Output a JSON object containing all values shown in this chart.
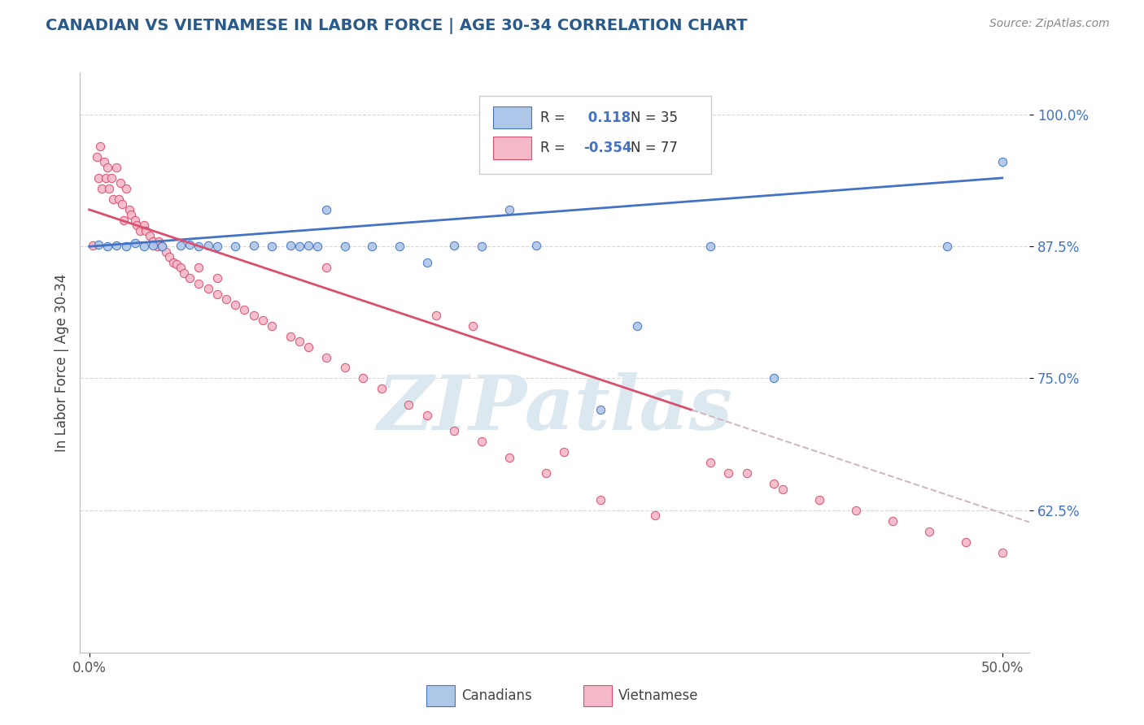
{
  "title": "CANADIAN VS VIETNAMESE IN LABOR FORCE | AGE 30-34 CORRELATION CHART",
  "source": "Source: ZipAtlas.com",
  "ylabel": "In Labor Force | Age 30-34",
  "xlim": [
    -0.005,
    0.515
  ],
  "ylim": [
    0.49,
    1.04
  ],
  "xticks": [
    0.0,
    0.5
  ],
  "xtick_labels": [
    "0.0%",
    "50.0%"
  ],
  "ytick_positions": [
    0.625,
    0.75,
    0.875,
    1.0
  ],
  "ytick_labels": [
    "62.5%",
    "75.0%",
    "87.5%",
    "100.0%"
  ],
  "legend_r_canadian": "0.118",
  "legend_n_canadian": "35",
  "legend_r_vietnamese": "-0.354",
  "legend_n_vietnamese": "77",
  "canadian_color": "#aec6e8",
  "canadian_edge_color": "#4472c4",
  "vietnamese_color": "#f4b8c8",
  "vietnamese_edge_color": "#d94f6e",
  "trend_canadian_color": "#4472c4",
  "trend_vietnamese_color": "#d94f6e",
  "dashed_color": "#d0b8c0",
  "watermark_color": "#dce8f0",
  "watermark_text": "ZIPatlas",
  "legend_label_canadian": "Canadians",
  "legend_label_vietnamese": "Vietnamese",
  "grid_color": "#d8d8d8",
  "title_color": "#2a5a8a",
  "source_color": "#888888",
  "ytick_color": "#4472c4",
  "xtick_color": "#555555",
  "canadian_x": [
    0.005,
    0.01,
    0.015,
    0.02,
    0.025,
    0.03,
    0.035,
    0.04,
    0.05,
    0.055,
    0.06,
    0.065,
    0.07,
    0.08,
    0.09,
    0.1,
    0.11,
    0.115,
    0.12,
    0.125,
    0.13,
    0.14,
    0.155,
    0.17,
    0.185,
    0.2,
    0.215,
    0.23,
    0.245,
    0.28,
    0.3,
    0.34,
    0.375,
    0.47,
    0.5
  ],
  "canadian_y": [
    0.877,
    0.875,
    0.876,
    0.875,
    0.878,
    0.875,
    0.876,
    0.875,
    0.876,
    0.877,
    0.875,
    0.876,
    0.875,
    0.875,
    0.876,
    0.875,
    0.876,
    0.875,
    0.876,
    0.875,
    0.91,
    0.875,
    0.875,
    0.875,
    0.86,
    0.876,
    0.875,
    0.91,
    0.876,
    0.72,
    0.8,
    0.875,
    0.75,
    0.875,
    0.955
  ],
  "vietnamese_x": [
    0.002,
    0.004,
    0.005,
    0.006,
    0.007,
    0.008,
    0.009,
    0.01,
    0.011,
    0.012,
    0.013,
    0.015,
    0.016,
    0.017,
    0.018,
    0.019,
    0.02,
    0.022,
    0.023,
    0.025,
    0.026,
    0.028,
    0.03,
    0.031,
    0.033,
    0.035,
    0.037,
    0.038,
    0.04,
    0.042,
    0.044,
    0.046,
    0.048,
    0.05,
    0.052,
    0.055,
    0.06,
    0.065,
    0.07,
    0.075,
    0.08,
    0.085,
    0.09,
    0.095,
    0.1,
    0.11,
    0.115,
    0.12,
    0.13,
    0.14,
    0.15,
    0.16,
    0.175,
    0.185,
    0.2,
    0.215,
    0.23,
    0.25,
    0.28,
    0.31,
    0.34,
    0.36,
    0.38,
    0.4,
    0.42,
    0.44,
    0.46,
    0.48,
    0.5,
    0.06,
    0.07,
    0.13,
    0.19,
    0.21,
    0.26,
    0.35,
    0.375
  ],
  "vietnamese_y": [
    0.876,
    0.96,
    0.94,
    0.97,
    0.93,
    0.955,
    0.94,
    0.95,
    0.93,
    0.94,
    0.92,
    0.95,
    0.92,
    0.935,
    0.915,
    0.9,
    0.93,
    0.91,
    0.905,
    0.9,
    0.895,
    0.89,
    0.895,
    0.89,
    0.885,
    0.88,
    0.875,
    0.88,
    0.875,
    0.87,
    0.865,
    0.86,
    0.858,
    0.855,
    0.85,
    0.845,
    0.84,
    0.835,
    0.83,
    0.825,
    0.82,
    0.815,
    0.81,
    0.805,
    0.8,
    0.79,
    0.785,
    0.78,
    0.77,
    0.76,
    0.75,
    0.74,
    0.725,
    0.715,
    0.7,
    0.69,
    0.675,
    0.66,
    0.635,
    0.62,
    0.67,
    0.66,
    0.645,
    0.635,
    0.625,
    0.615,
    0.605,
    0.595,
    0.585,
    0.855,
    0.845,
    0.855,
    0.81,
    0.8,
    0.68,
    0.66,
    0.65
  ]
}
